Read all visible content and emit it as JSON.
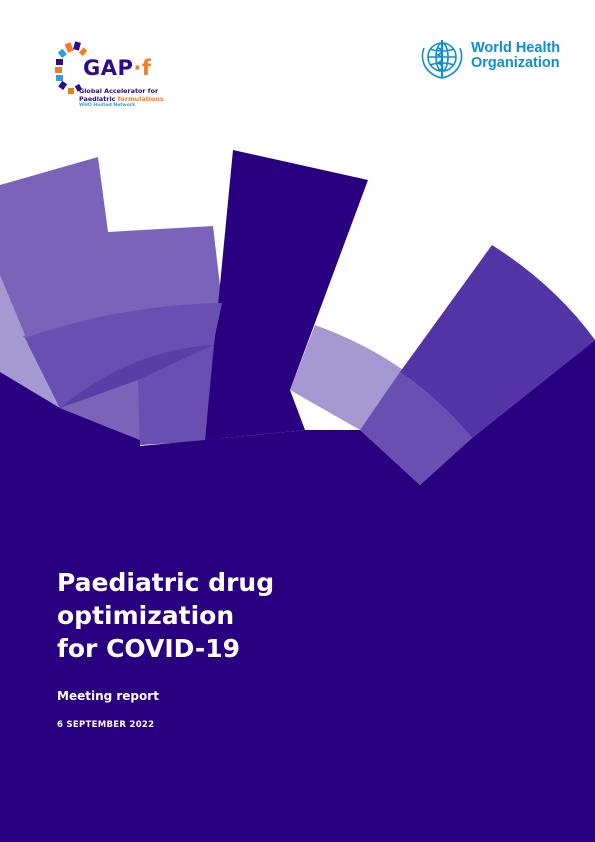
{
  "cover": {
    "title_lines": [
      "Paediatric drug",
      "optimization",
      "for COVID-19"
    ],
    "subtitle": "Meeting report",
    "date": "6 SEPTEMBER 2022"
  },
  "gapf_logo": {
    "name": "GAP",
    "name_suffix": "f",
    "tagline_line1": "Global Accelerator for",
    "tagline_line2_part1": "Paediatric ",
    "tagline_line2_part2": "formulations",
    "tagline_line3": "WHO Hosted Network"
  },
  "who_logo": {
    "name": "World Health\nOrganization",
    "icon": "who-emblem-icon"
  },
  "colors": {
    "dark_purple": "#29007f",
    "mid_purple": "#5234a6",
    "light_purple": "#7a63b8",
    "pale_purple": "#a699d1",
    "orange": "#f47b20",
    "who_blue": "#0b8fcf",
    "cyan": "#2aa1d8"
  }
}
